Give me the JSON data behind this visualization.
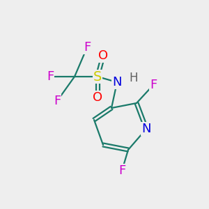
{
  "bg_color": "#eeeeee",
  "atom_colors": {
    "F": "#cc00cc",
    "S": "#cccc00",
    "O": "#ff0000",
    "N": "#0000dd",
    "H": "#606060",
    "C": "#000000",
    "bond": "#1a7a6a"
  },
  "bond_lw": 1.6,
  "font_size": 13
}
